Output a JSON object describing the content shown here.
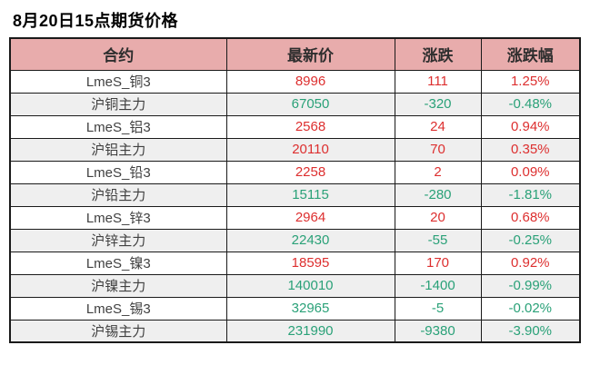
{
  "title": "8月20日15点期货价格",
  "colors": {
    "up": "#dd2f2f",
    "down": "#2aa178",
    "header_bg": "#e8acac",
    "stripe": "#efefef",
    "border": "#1a1a1a"
  },
  "table": {
    "columns": [
      "合约",
      "最新价",
      "涨跌",
      "涨跌幅"
    ],
    "rows": [
      {
        "contract": "LmeS_铜3",
        "price": "8996",
        "change": "111",
        "change_pct": "1.25%",
        "direction": "up"
      },
      {
        "contract": "沪铜主力",
        "price": "67050",
        "change": "-320",
        "change_pct": "-0.48%",
        "direction": "down"
      },
      {
        "contract": "LmeS_铝3",
        "price": "2568",
        "change": "24",
        "change_pct": "0.94%",
        "direction": "up"
      },
      {
        "contract": "沪铝主力",
        "price": "20110",
        "change": "70",
        "change_pct": "0.35%",
        "direction": "up"
      },
      {
        "contract": "LmeS_铅3",
        "price": "2258",
        "change": "2",
        "change_pct": "0.09%",
        "direction": "up"
      },
      {
        "contract": "沪铅主力",
        "price": "15115",
        "change": "-280",
        "change_pct": "-1.81%",
        "direction": "down"
      },
      {
        "contract": "LmeS_锌3",
        "price": "2964",
        "change": "20",
        "change_pct": "0.68%",
        "direction": "up"
      },
      {
        "contract": "沪锌主力",
        "price": "22430",
        "change": "-55",
        "change_pct": "-0.25%",
        "direction": "down"
      },
      {
        "contract": "LmeS_镍3",
        "price": "18595",
        "change": "170",
        "change_pct": "0.92%",
        "direction": "up"
      },
      {
        "contract": "沪镍主力",
        "price": "140010",
        "change": "-1400",
        "change_pct": "-0.99%",
        "direction": "down"
      },
      {
        "contract": "LmeS_锡3",
        "price": "32965",
        "change": "-5",
        "change_pct": "-0.02%",
        "direction": "down"
      },
      {
        "contract": "沪锡主力",
        "price": "231990",
        "change": "-9380",
        "change_pct": "-3.90%",
        "direction": "down"
      }
    ]
  },
  "chart_data": {
    "type": "table",
    "title": "8月20日15点期货价格",
    "columns": [
      "合约",
      "最新价",
      "涨跌",
      "涨跌幅"
    ],
    "rows": [
      [
        "LmeS_铜3",
        8996,
        111,
        "1.25%"
      ],
      [
        "沪铜主力",
        67050,
        -320,
        "-0.48%"
      ],
      [
        "LmeS_铝3",
        2568,
        24,
        "0.94%"
      ],
      [
        "沪铝主力",
        20110,
        70,
        "0.35%"
      ],
      [
        "LmeS_铅3",
        2258,
        2,
        "0.09%"
      ],
      [
        "沪铅主力",
        15115,
        -280,
        "-1.81%"
      ],
      [
        "LmeS_锌3",
        2964,
        20,
        "0.68%"
      ],
      [
        "沪锌主力",
        22430,
        -55,
        "-0.25%"
      ],
      [
        "LmeS_镍3",
        18595,
        170,
        "0.92%"
      ],
      [
        "沪镍主力",
        140010,
        -1400,
        "-0.99%"
      ],
      [
        "LmeS_锡3",
        32965,
        -5,
        "-0.02%"
      ],
      [
        "沪锡主力",
        231990,
        -9380,
        "-3.90%"
      ]
    ],
    "layout_hints": {
      "up_color_convention": "red = rise, green = fall (CN market convention)",
      "striped_rows": true,
      "header_background": "#e8acac"
    }
  }
}
